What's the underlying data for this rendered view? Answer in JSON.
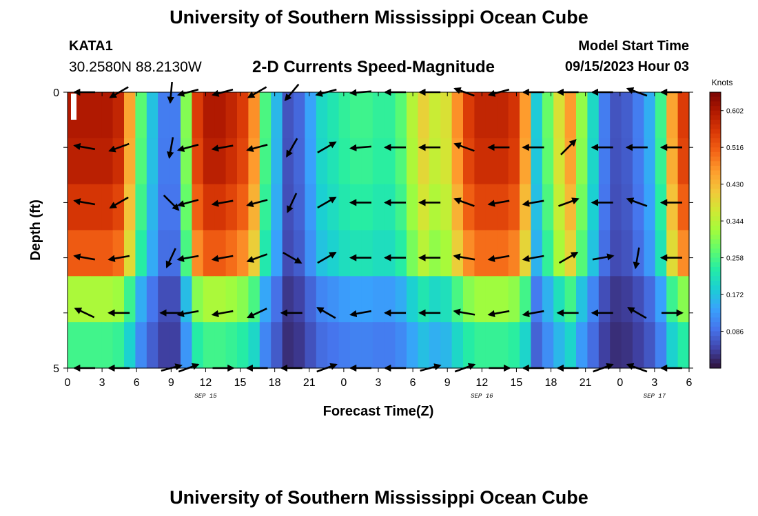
{
  "page": {
    "title": "University of Southern Mississippi Ocean Cube",
    "bottom_title": "University of Southern Mississippi Ocean Cube",
    "station": "KATA1",
    "coords": "30.2580N  88.2130W",
    "subtitle": "2-D Currents Speed-Magnitude",
    "start_label": "Model Start Time",
    "start_value": "09/15/2023 Hour 03"
  },
  "colors": {
    "scale": [
      "#30123b",
      "#4145ab",
      "#4675ed",
      "#39a2fc",
      "#1bcfd4",
      "#24eca6",
      "#61fc6c",
      "#a4fc3b",
      "#d1e834",
      "#f3c63a",
      "#fe9b2d",
      "#f36315",
      "#d93806",
      "#b11901",
      "#7a0402"
    ],
    "arrows": "#000000"
  },
  "chart_data": {
    "type": "heatmap",
    "xlabel": "Forecast Time(Z)",
    "ylabel": "Depth (ft)",
    "colorbar_title": "Knots",
    "colorbar_ticks": [
      "0.602",
      "0.516",
      "0.430",
      "0.344",
      "0.258",
      "0.172",
      "0.086"
    ],
    "colorbar_range": [
      0,
      0.645
    ],
    "y_ticks": [
      "0",
      "5"
    ],
    "ylim": [
      0,
      5
    ],
    "x_ticks": [
      "0",
      "3",
      "6",
      "9",
      "12",
      "15",
      "18",
      "21",
      "0",
      "3",
      "6",
      "9",
      "12",
      "15",
      "18",
      "21",
      "0",
      "3",
      "6"
    ],
    "x_range_hours": [
      0,
      54
    ],
    "date_labels": [
      {
        "text": "SEP 15",
        "hour": 12
      },
      {
        "text": "SEP 16",
        "hour": 36
      },
      {
        "text": "SEP 17",
        "hour": 51
      }
    ],
    "depth_levels": 5,
    "time_profile": [
      0.6,
      0.6,
      0.6,
      0.6,
      0.58,
      0.45,
      0.27,
      0.17,
      0.1,
      0.1,
      0.3,
      0.55,
      0.6,
      0.6,
      0.58,
      0.55,
      0.47,
      0.26,
      0.16,
      0.06,
      0.08,
      0.14,
      0.2,
      0.22,
      0.24,
      0.25,
      0.25,
      0.24,
      0.24,
      0.27,
      0.34,
      0.4,
      0.36,
      0.38,
      0.47,
      0.55,
      0.58,
      0.58,
      0.58,
      0.56,
      0.46,
      0.18,
      0.28,
      0.38,
      0.46,
      0.31,
      0.2,
      0.1,
      0.06,
      0.07,
      0.1,
      0.15,
      0.25,
      0.45,
      0.55
    ],
    "depth_factor": [
      1.0,
      0.98,
      0.93,
      0.86,
      0.55,
      0.42
    ],
    "speed_matrix": [],
    "arrow_columns_hours": [
      1.5,
      4.5,
      9,
      10.5,
      13.5,
      16.5,
      19.5,
      22.5,
      25.5,
      28.5,
      31.5,
      34.5,
      37.5,
      40.5,
      43.5,
      46.5,
      49.5,
      52.5
    ],
    "arrow_rows_depth": [
      0,
      1,
      2,
      3,
      4,
      5
    ],
    "arrow_angles_deg": [
      [
        180,
        210,
        265,
        195,
        195,
        210,
        230,
        195,
        185,
        180,
        180,
        160,
        195,
        180,
        180,
        180,
        160,
        180
      ],
      [
        170,
        200,
        260,
        195,
        190,
        195,
        240,
        30,
        185,
        180,
        180,
        160,
        180,
        180,
        45,
        180,
        180,
        180
      ],
      [
        170,
        210,
        315,
        195,
        190,
        195,
        245,
        30,
        180,
        180,
        180,
        160,
        190,
        190,
        20,
        180,
        160,
        180
      ],
      [
        170,
        190,
        245,
        190,
        190,
        200,
        330,
        30,
        180,
        180,
        180,
        170,
        190,
        190,
        30,
        10,
        260,
        180
      ],
      [
        155,
        180,
        180,
        190,
        190,
        205,
        180,
        150,
        190,
        180,
        180,
        170,
        190,
        190,
        180,
        180,
        150,
        0
      ],
      [
        180,
        180,
        15,
        20,
        0,
        180,
        180,
        20,
        180,
        180,
        15,
        20,
        0,
        180,
        180,
        20,
        160,
        180
      ]
    ]
  }
}
